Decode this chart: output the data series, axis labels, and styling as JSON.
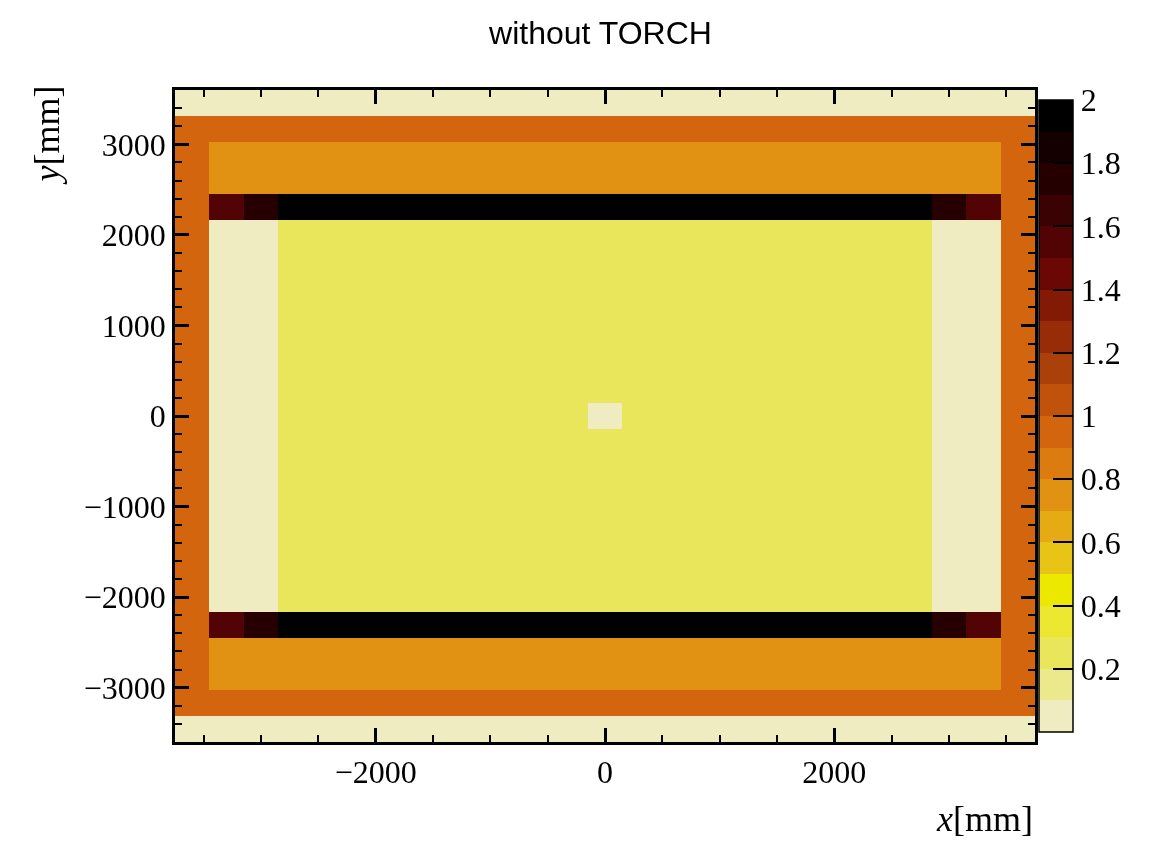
{
  "chart_data": {
    "type": "heatmap",
    "title": "without TORCH",
    "xlabel": "x[mm]",
    "ylabel": "y[mm]",
    "x": [
      -3600,
      -3300,
      -3000,
      -2700,
      -2400,
      -2100,
      -1800,
      -1500,
      -1200,
      -900,
      -600,
      -300,
      0,
      300,
      600,
      900,
      1200,
      1500,
      1800,
      2100,
      2400,
      2700,
      3000,
      3300,
      3600
    ],
    "y": [
      3456,
      3168,
      2880,
      2592,
      2304,
      2016,
      1728,
      1440,
      1152,
      864,
      576,
      288,
      0,
      -288,
      -576,
      -864,
      -1152,
      -1440,
      -1728,
      -2016,
      -2304,
      -2592,
      -2880,
      -3168,
      -3456
    ],
    "cells": [
      [
        0.05,
        0.05,
        0.05,
        0.05,
        0.05,
        0.05,
        0.05,
        0.05,
        0.05,
        0.05,
        0.05,
        0.05,
        0.05,
        0.05,
        0.05,
        0.05,
        0.05,
        0.05,
        0.05,
        0.05,
        0.05,
        0.05,
        0.05,
        0.05,
        0.05
      ],
      [
        0.95,
        0.95,
        0.95,
        0.95,
        0.95,
        0.95,
        0.95,
        0.95,
        0.95,
        0.95,
        0.95,
        0.95,
        0.95,
        0.95,
        0.95,
        0.95,
        0.95,
        0.95,
        0.95,
        0.95,
        0.95,
        0.95,
        0.95,
        0.95,
        0.95
      ],
      [
        0.95,
        0.75,
        0.75,
        0.75,
        0.75,
        0.75,
        0.75,
        0.75,
        0.75,
        0.75,
        0.75,
        0.75,
        0.75,
        0.75,
        0.75,
        0.75,
        0.75,
        0.75,
        0.75,
        0.75,
        0.75,
        0.75,
        0.75,
        0.75,
        0.95
      ],
      [
        0.95,
        0.75,
        0.75,
        0.75,
        0.75,
        0.75,
        0.75,
        0.75,
        0.75,
        0.75,
        0.75,
        0.75,
        0.75,
        0.75,
        0.75,
        0.75,
        0.75,
        0.75,
        0.75,
        0.75,
        0.75,
        0.75,
        0.75,
        0.75,
        0.95
      ],
      [
        0.95,
        1.55,
        1.75,
        1.95,
        1.95,
        1.95,
        1.95,
        1.95,
        1.95,
        1.95,
        1.95,
        1.95,
        1.95,
        1.95,
        1.95,
        1.95,
        1.95,
        1.95,
        1.95,
        1.95,
        1.95,
        1.95,
        1.75,
        1.55,
        0.95
      ],
      [
        0.95,
        0.05,
        0.05,
        0.25,
        0.25,
        0.25,
        0.25,
        0.25,
        0.25,
        0.25,
        0.25,
        0.25,
        0.25,
        0.25,
        0.25,
        0.25,
        0.25,
        0.25,
        0.25,
        0.25,
        0.25,
        0.25,
        0.05,
        0.05,
        0.95
      ],
      [
        0.95,
        0.05,
        0.05,
        0.25,
        0.25,
        0.25,
        0.25,
        0.25,
        0.25,
        0.25,
        0.25,
        0.25,
        0.25,
        0.25,
        0.25,
        0.25,
        0.25,
        0.25,
        0.25,
        0.25,
        0.25,
        0.25,
        0.05,
        0.05,
        0.95
      ],
      [
        0.95,
        0.05,
        0.05,
        0.25,
        0.25,
        0.25,
        0.25,
        0.25,
        0.25,
        0.25,
        0.25,
        0.25,
        0.25,
        0.25,
        0.25,
        0.25,
        0.25,
        0.25,
        0.25,
        0.25,
        0.25,
        0.25,
        0.05,
        0.05,
        0.95
      ],
      [
        0.95,
        0.05,
        0.05,
        0.25,
        0.25,
        0.25,
        0.25,
        0.25,
        0.25,
        0.25,
        0.25,
        0.25,
        0.25,
        0.25,
        0.25,
        0.25,
        0.25,
        0.25,
        0.25,
        0.25,
        0.25,
        0.25,
        0.05,
        0.05,
        0.95
      ],
      [
        0.95,
        0.05,
        0.05,
        0.25,
        0.25,
        0.25,
        0.25,
        0.25,
        0.25,
        0.25,
        0.25,
        0.25,
        0.25,
        0.25,
        0.25,
        0.25,
        0.25,
        0.25,
        0.25,
        0.25,
        0.25,
        0.25,
        0.05,
        0.05,
        0.95
      ],
      [
        0.95,
        0.05,
        0.05,
        0.25,
        0.25,
        0.25,
        0.25,
        0.25,
        0.25,
        0.25,
        0.25,
        0.25,
        0.25,
        0.25,
        0.25,
        0.25,
        0.25,
        0.25,
        0.25,
        0.25,
        0.25,
        0.25,
        0.05,
        0.05,
        0.95
      ],
      [
        0.95,
        0.05,
        0.05,
        0.25,
        0.25,
        0.25,
        0.25,
        0.25,
        0.25,
        0.25,
        0.25,
        0.25,
        0.25,
        0.25,
        0.25,
        0.25,
        0.25,
        0.25,
        0.25,
        0.25,
        0.25,
        0.25,
        0.05,
        0.05,
        0.95
      ],
      [
        0.95,
        0.05,
        0.05,
        0.25,
        0.25,
        0.25,
        0.25,
        0.25,
        0.25,
        0.25,
        0.25,
        0.25,
        0.0,
        0.25,
        0.25,
        0.25,
        0.25,
        0.25,
        0.25,
        0.25,
        0.25,
        0.25,
        0.05,
        0.05,
        0.95
      ],
      [
        0.95,
        0.05,
        0.05,
        0.25,
        0.25,
        0.25,
        0.25,
        0.25,
        0.25,
        0.25,
        0.25,
        0.25,
        0.25,
        0.25,
        0.25,
        0.25,
        0.25,
        0.25,
        0.25,
        0.25,
        0.25,
        0.25,
        0.05,
        0.05,
        0.95
      ],
      [
        0.95,
        0.05,
        0.05,
        0.25,
        0.25,
        0.25,
        0.25,
        0.25,
        0.25,
        0.25,
        0.25,
        0.25,
        0.25,
        0.25,
        0.25,
        0.25,
        0.25,
        0.25,
        0.25,
        0.25,
        0.25,
        0.25,
        0.05,
        0.05,
        0.95
      ],
      [
        0.95,
        0.05,
        0.05,
        0.25,
        0.25,
        0.25,
        0.25,
        0.25,
        0.25,
        0.25,
        0.25,
        0.25,
        0.25,
        0.25,
        0.25,
        0.25,
        0.25,
        0.25,
        0.25,
        0.25,
        0.25,
        0.25,
        0.05,
        0.05,
        0.95
      ],
      [
        0.95,
        0.05,
        0.05,
        0.25,
        0.25,
        0.25,
        0.25,
        0.25,
        0.25,
        0.25,
        0.25,
        0.25,
        0.25,
        0.25,
        0.25,
        0.25,
        0.25,
        0.25,
        0.25,
        0.25,
        0.25,
        0.25,
        0.05,
        0.05,
        0.95
      ],
      [
        0.95,
        0.05,
        0.05,
        0.25,
        0.25,
        0.25,
        0.25,
        0.25,
        0.25,
        0.25,
        0.25,
        0.25,
        0.25,
        0.25,
        0.25,
        0.25,
        0.25,
        0.25,
        0.25,
        0.25,
        0.25,
        0.25,
        0.05,
        0.05,
        0.95
      ],
      [
        0.95,
        0.05,
        0.05,
        0.25,
        0.25,
        0.25,
        0.25,
        0.25,
        0.25,
        0.25,
        0.25,
        0.25,
        0.25,
        0.25,
        0.25,
        0.25,
        0.25,
        0.25,
        0.25,
        0.25,
        0.25,
        0.25,
        0.05,
        0.05,
        0.95
      ],
      [
        0.95,
        0.05,
        0.05,
        0.25,
        0.25,
        0.25,
        0.25,
        0.25,
        0.25,
        0.25,
        0.25,
        0.25,
        0.25,
        0.25,
        0.25,
        0.25,
        0.25,
        0.25,
        0.25,
        0.25,
        0.25,
        0.25,
        0.05,
        0.05,
        0.95
      ],
      [
        0.95,
        1.55,
        1.75,
        1.95,
        1.95,
        1.95,
        1.95,
        1.95,
        1.95,
        1.95,
        1.95,
        1.95,
        1.95,
        1.95,
        1.95,
        1.95,
        1.95,
        1.95,
        1.95,
        1.95,
        1.95,
        1.95,
        1.75,
        1.55,
        0.95
      ],
      [
        0.95,
        0.75,
        0.75,
        0.75,
        0.75,
        0.75,
        0.75,
        0.75,
        0.75,
        0.75,
        0.75,
        0.75,
        0.75,
        0.75,
        0.75,
        0.75,
        0.75,
        0.75,
        0.75,
        0.75,
        0.75,
        0.75,
        0.75,
        0.75,
        0.95
      ],
      [
        0.95,
        0.75,
        0.75,
        0.75,
        0.75,
        0.75,
        0.75,
        0.75,
        0.75,
        0.75,
        0.75,
        0.75,
        0.75,
        0.75,
        0.75,
        0.75,
        0.75,
        0.75,
        0.75,
        0.75,
        0.75,
        0.75,
        0.75,
        0.75,
        0.95
      ],
      [
        0.95,
        0.95,
        0.95,
        0.95,
        0.95,
        0.95,
        0.95,
        0.95,
        0.95,
        0.95,
        0.95,
        0.95,
        0.95,
        0.95,
        0.95,
        0.95,
        0.95,
        0.95,
        0.95,
        0.95,
        0.95,
        0.95,
        0.95,
        0.95,
        0.95
      ],
      [
        0.05,
        0.05,
        0.05,
        0.05,
        0.05,
        0.05,
        0.05,
        0.05,
        0.05,
        0.05,
        0.05,
        0.05,
        0.05,
        0.05,
        0.05,
        0.05,
        0.05,
        0.05,
        0.05,
        0.05,
        0.05,
        0.05,
        0.05,
        0.05,
        0.05
      ]
    ],
    "colors": [
      "#efecc2",
      "#ece88c",
      "#eae65c",
      "#ece730",
      "#ece800",
      "#e8c416",
      "#e6aa14",
      "#e29212",
      "#dc7c10",
      "#d2650e",
      "#c0520c",
      "#ac400a",
      "#982c08",
      "#821a06",
      "#6c0804",
      "#520404",
      "#3a0202",
      "#260000",
      "#140000",
      "#000000"
    ],
    "clim": [
      0,
      2
    ],
    "cticks": [
      0.2,
      0.4,
      0.6,
      0.8,
      1,
      1.2,
      1.4,
      1.6,
      1.8,
      2
    ],
    "xlim": [
      -3750,
      3750
    ],
    "xticks": [
      -2000,
      0,
      2000
    ],
    "ylim": [
      -3600,
      3600
    ],
    "yticks": [
      -3000,
      -2000,
      -1000,
      0,
      1000,
      2000,
      3000
    ]
  }
}
